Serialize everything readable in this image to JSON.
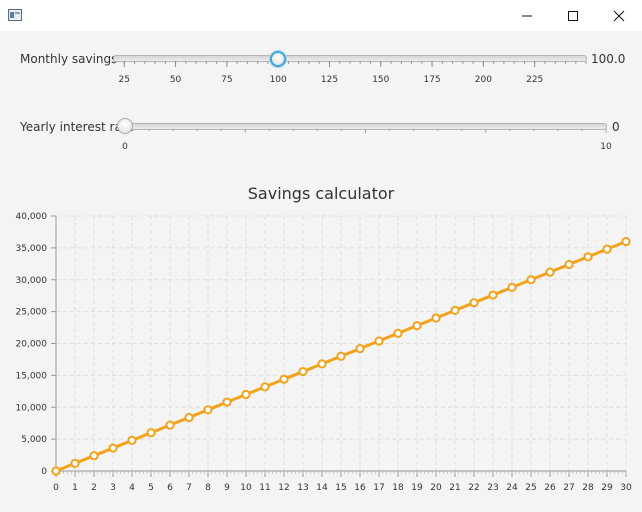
{
  "window": {
    "icon": "java-app-icon",
    "controls": [
      "minimize-icon",
      "maximize-icon",
      "close-icon"
    ]
  },
  "monthly_slider": {
    "label": "Monthly savings",
    "value_text": "100.0",
    "value": 100,
    "min": 20,
    "max": 250,
    "ticks": [
      "25",
      "50",
      "75",
      "100",
      "125",
      "150",
      "175",
      "200",
      "225"
    ]
  },
  "interest_slider": {
    "label": "Yearly interest rate",
    "value_text": "0",
    "value": 0,
    "min": 0,
    "max": 10,
    "ticks": [
      "0",
      "10"
    ]
  },
  "chart_data": {
    "type": "line",
    "title": "Savings calculator",
    "xlabel": "",
    "ylabel": "",
    "xlim": [
      0,
      30
    ],
    "ylim": [
      0,
      40000
    ],
    "y_ticks": [
      "0",
      "5,000",
      "10,000",
      "15,000",
      "20,000",
      "25,000",
      "30,000",
      "35,000",
      "40,000"
    ],
    "x_ticks": [
      "0",
      "1",
      "2",
      "3",
      "4",
      "5",
      "6",
      "7",
      "8",
      "9",
      "10",
      "11",
      "12",
      "13",
      "14",
      "15",
      "16",
      "17",
      "18",
      "19",
      "20",
      "21",
      "22",
      "23",
      "24",
      "25",
      "26",
      "27",
      "28",
      "29",
      "30"
    ],
    "grid": true,
    "series_color": "#f3a21c",
    "series": [
      {
        "x": [
          0,
          1,
          2,
          3,
          4,
          5,
          6,
          7,
          8,
          9,
          10,
          11,
          12,
          13,
          14,
          15,
          16,
          17,
          18,
          19,
          20,
          21,
          22,
          23,
          24,
          25,
          26,
          27,
          28,
          29,
          30
        ],
        "values": [
          0,
          1200,
          2400,
          3600,
          4800,
          6000,
          7200,
          8400,
          9600,
          10800,
          12000,
          13200,
          14400,
          15600,
          16800,
          18000,
          19200,
          20400,
          21600,
          22800,
          24000,
          25200,
          26400,
          27600,
          28800,
          30000,
          31200,
          32400,
          33600,
          34800,
          36000
        ]
      }
    ]
  }
}
